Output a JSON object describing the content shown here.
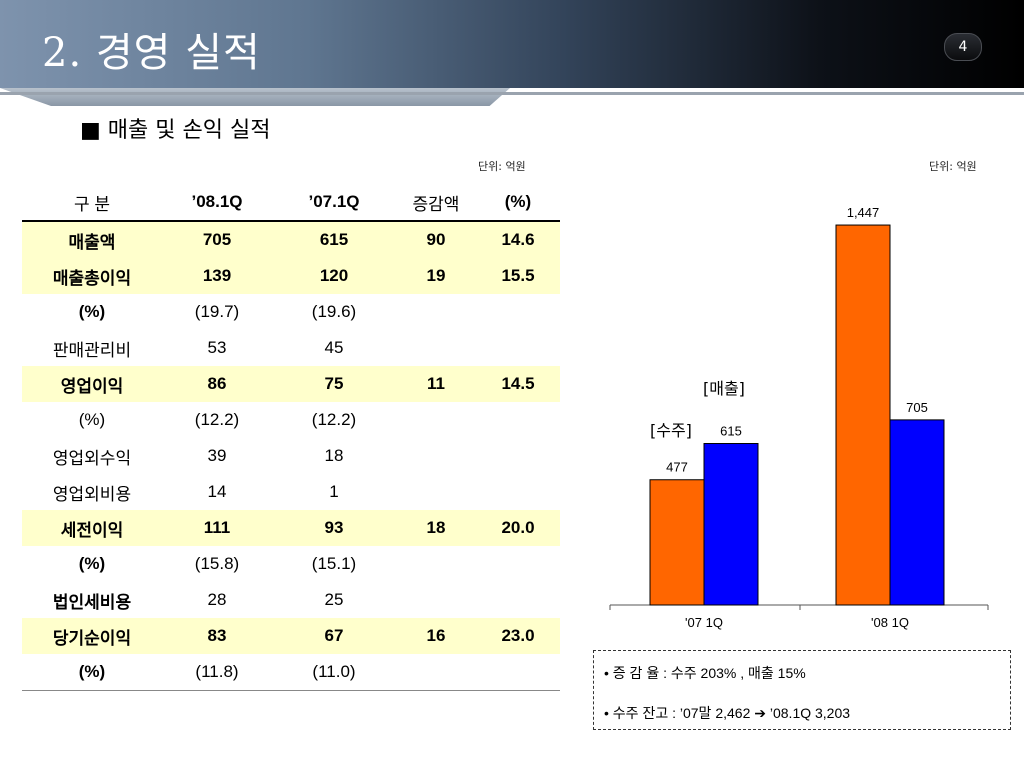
{
  "header": {
    "title": "2. 경영 실적",
    "page_number": "4"
  },
  "section_title": "■ 매출 및 손익 실적",
  "table_unit": "단위: 억원",
  "chart_unit": "단위: 억원",
  "table": {
    "headers": [
      "구 분",
      "’08.1Q",
      "’07.1Q",
      "증감액",
      "(%)"
    ],
    "rows": [
      {
        "cells": [
          "매출액",
          "705",
          "615",
          "90",
          "14.6"
        ],
        "highlight": true
      },
      {
        "cells": [
          "매출총이익",
          "139",
          "120",
          "19",
          "15.5"
        ],
        "highlight": true
      },
      {
        "cells": [
          "(%)",
          "(19.7)",
          "(19.6)",
          "",
          ""
        ],
        "bold_label": true
      },
      {
        "cells": [
          "판매관리비",
          "53",
          "45",
          "",
          ""
        ]
      },
      {
        "cells": [
          "영업이익",
          "86",
          "75",
          "11",
          "14.5"
        ],
        "highlight": true
      },
      {
        "cells": [
          "(%)",
          "(12.2)",
          "(12.2)",
          "",
          ""
        ]
      },
      {
        "cells": [
          "영업외수익",
          "39",
          "18",
          "",
          ""
        ]
      },
      {
        "cells": [
          "영업외비용",
          "14",
          "1",
          "",
          ""
        ]
      },
      {
        "cells": [
          "세전이익",
          "111",
          "93",
          "18",
          "20.0"
        ],
        "highlight": true
      },
      {
        "cells": [
          "(%)",
          "(15.8)",
          "(15.1)",
          "",
          ""
        ],
        "bold_label": true
      },
      {
        "cells": [
          "법인세비용",
          "28",
          "25",
          "",
          ""
        ],
        "bold_label": true
      },
      {
        "cells": [
          "당기순이익",
          "83",
          "67",
          "16",
          "23.0"
        ],
        "highlight": true
      },
      {
        "cells": [
          "(%)",
          "(11.8)",
          "(11.0)",
          "",
          ""
        ],
        "bold_label": true
      }
    ]
  },
  "chart_data": {
    "type": "bar",
    "categories": [
      "'07 1Q",
      "'08 1Q"
    ],
    "series": [
      {
        "name": "[수주]",
        "values": [
          477,
          1447
        ],
        "color": "#ff6600"
      },
      {
        "name": "[매출]",
        "values": [
          615,
          705
        ],
        "color": "#0000ff"
      }
    ],
    "value_labels": [
      "477",
      "1,447",
      "615",
      "705"
    ],
    "ylim": [
      0,
      1550
    ],
    "grid": false,
    "legend": "series names printed beside bars"
  },
  "notes": [
    {
      "text": "• 증 감 율   :  수주  203% , 매출 15%"
    },
    {
      "text": "• 수주 잔고 :  ’07말 2,462   ➔  ’08.1Q 3,203"
    }
  ]
}
